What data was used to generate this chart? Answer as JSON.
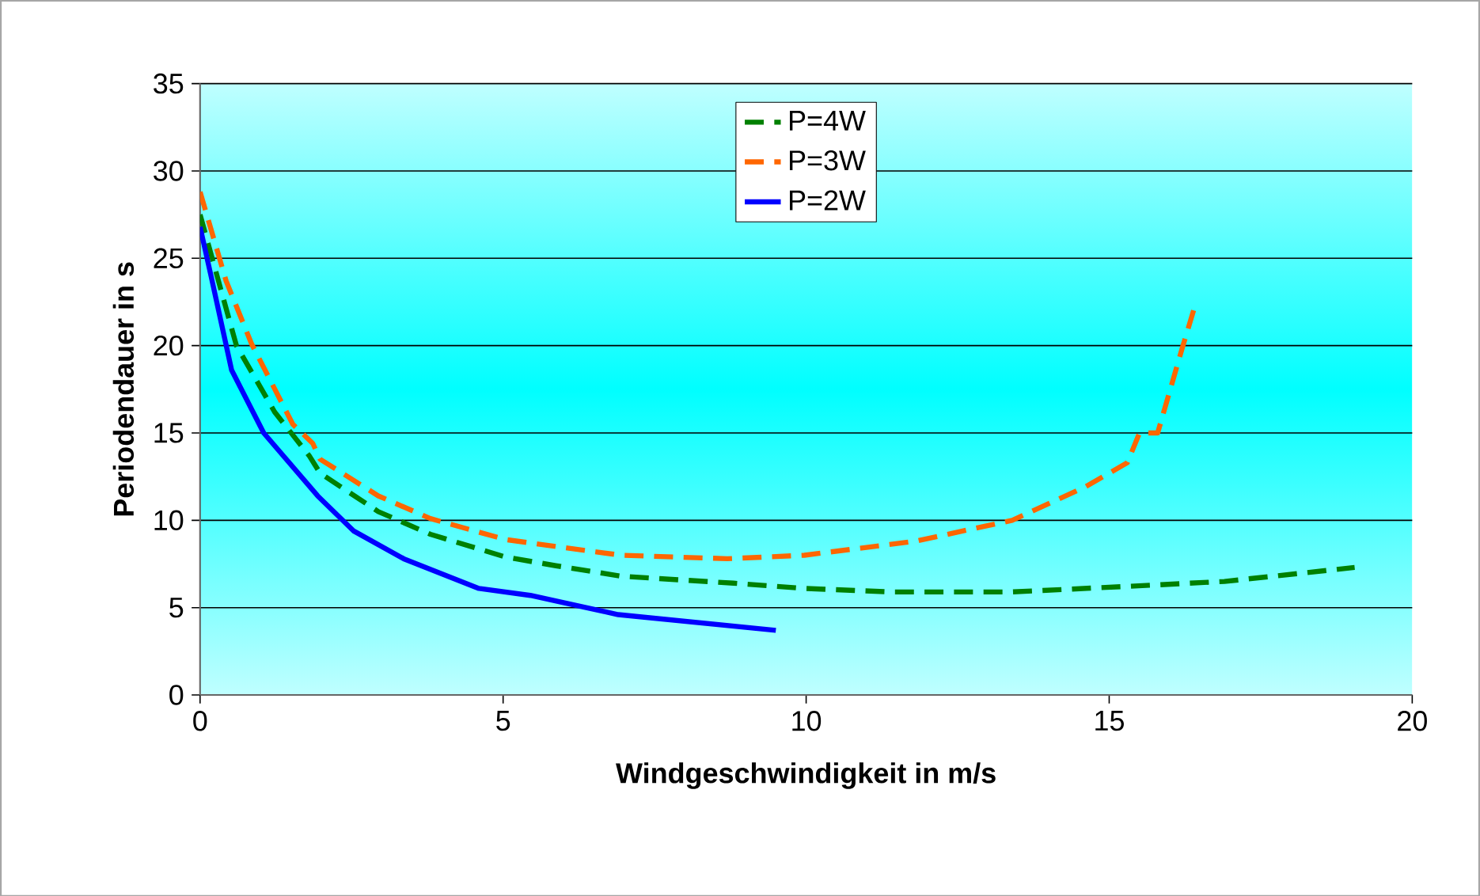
{
  "chart_data": {
    "type": "line",
    "xlabel": "Windgeschwindigkeit in m/s",
    "ylabel": "Periodendauer in s",
    "xlim": [
      0,
      20
    ],
    "xticks": [
      0,
      5,
      10,
      15,
      20
    ],
    "ylim": [
      0,
      35
    ],
    "yticks": [
      0,
      5,
      10,
      15,
      20,
      25,
      30,
      35
    ],
    "grid": "y",
    "legend": "top",
    "marker": "none",
    "series": [
      {
        "name": "P=4W",
        "color": "#008000",
        "line_style": "dashed",
        "x": [
          0,
          0.6,
          1.23,
          1.8,
          1.98,
          2.94,
          3.8,
          5.04,
          5.87,
          6.95,
          8.8,
          9.97,
          11.4,
          13.4,
          15.2,
          16.9,
          19.05
        ],
        "values": [
          27.5,
          20,
          16.2,
          13.7,
          12.7,
          10.5,
          9.2,
          7.9,
          7.4,
          6.8,
          6.4,
          6.1,
          5.9,
          5.9,
          6.2,
          6.5,
          7.3
        ]
      },
      {
        "name": "P=3W",
        "color": "#ff6600",
        "line_style": "dashed",
        "x": [
          0,
          0.43,
          0.85,
          1.53,
          1.86,
          1.98,
          2.94,
          3.8,
          5.04,
          5.87,
          6.95,
          8.7,
          9.97,
          11.8,
          13.4,
          14.6,
          15.3,
          15.5,
          15.8,
          16.2,
          16.4
        ],
        "values": [
          28.8,
          23.7,
          20.1,
          15.5,
          14.4,
          13.5,
          11.4,
          10.1,
          8.9,
          8.5,
          8.0,
          7.8,
          8.0,
          8.8,
          10.0,
          11.9,
          13.3,
          15.0,
          15.0,
          19.8,
          22.1
        ]
      },
      {
        "name": "P=2W",
        "color": "#0000ff",
        "line_style": "solid",
        "x": [
          0,
          0.18,
          0.52,
          1.05,
          1.94,
          2.53,
          3.36,
          4.6,
          5.45,
          6.9,
          9.5
        ],
        "values": [
          26.8,
          24,
          18.6,
          15.0,
          11.4,
          9.4,
          7.8,
          6.1,
          5.7,
          4.6,
          3.7
        ]
      }
    ]
  }
}
